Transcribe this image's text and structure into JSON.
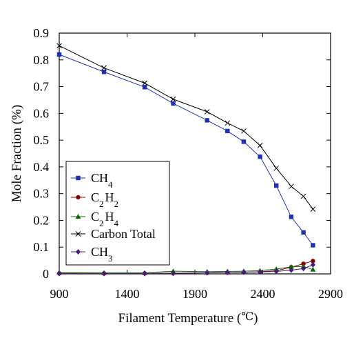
{
  "chart_data": {
    "type": "line",
    "xlabel": "Filament Temperature",
    "xunit": "℃",
    "ylabel": "Mole Fraction (%)",
    "xlim": [
      900,
      2900
    ],
    "ylim": [
      0,
      0.9
    ],
    "x_ticks": [
      900,
      1400,
      1900,
      2400,
      2900
    ],
    "x_tick_labels": [
      "900",
      "1400",
      "1900",
      "2400",
      "2900"
    ],
    "y_ticks": [
      0,
      0.1,
      0.2,
      0.3,
      0.4,
      0.5,
      0.6,
      0.7,
      0.8,
      0.9
    ],
    "y_tick_labels": [
      "0",
      "0.1",
      "0.2",
      "0.3",
      "0.4",
      "0.5",
      "0.6",
      "0.7",
      "0.8",
      "0.9"
    ],
    "grid": false,
    "legend_position": "bottom-left",
    "series": [
      {
        "name": "CH4",
        "name_base": "CH",
        "name_sub": "4",
        "color": "#1f2fb8",
        "marker": "square",
        "x": [
          900,
          1230,
          1530,
          1740,
          1990,
          2140,
          2260,
          2380,
          2500,
          2610,
          2700,
          2770
        ],
        "y": [
          0.82,
          0.755,
          0.698,
          0.637,
          0.574,
          0.534,
          0.494,
          0.438,
          0.33,
          0.213,
          0.155,
          0.107
        ]
      },
      {
        "name": "C2H2",
        "name_base": "C",
        "name_sub": "2",
        "name_rest": "H",
        "name_sub2": "2",
        "color": "#8b0000",
        "marker": "circle",
        "x": [
          900,
          1230,
          1530,
          1740,
          1990,
          2140,
          2260,
          2380,
          2500,
          2610,
          2700,
          2770
        ],
        "y": [
          0.002,
          0.002,
          0.002,
          0.003,
          0.004,
          0.005,
          0.006,
          0.008,
          0.012,
          0.025,
          0.038,
          0.048
        ]
      },
      {
        "name": "C2H4",
        "name_base": "C",
        "name_sub": "2",
        "name_rest": "H",
        "name_sub2": "4",
        "color": "#0a6b0a",
        "marker": "triangle",
        "x": [
          900,
          1230,
          1530,
          1740,
          1990,
          2140,
          2260,
          2380,
          2500,
          2610,
          2700,
          2770
        ],
        "y": [
          0.005,
          0.004,
          0.004,
          0.01,
          0.008,
          0.009,
          0.01,
          0.012,
          0.018,
          0.026,
          0.028,
          0.016
        ]
      },
      {
        "name": "Carbon Total",
        "color": "#000000",
        "marker": "x",
        "x": [
          900,
          1230,
          1530,
          1740,
          1990,
          2140,
          2260,
          2380,
          2500,
          2610,
          2700,
          2770
        ],
        "y": [
          0.853,
          0.77,
          0.713,
          0.653,
          0.606,
          0.564,
          0.534,
          0.48,
          0.395,
          0.327,
          0.29,
          0.242
        ]
      },
      {
        "name": "CH3",
        "name_base": "CH",
        "name_sub": "3",
        "color": "#4b1a7a",
        "marker": "diamond",
        "x": [
          900,
          1230,
          1530,
          1740,
          1990,
          2140,
          2260,
          2380,
          2500,
          2610,
          2700,
          2770
        ],
        "y": [
          0.001,
          0.001,
          0.001,
          0.002,
          0.004,
          0.005,
          0.006,
          0.007,
          0.009,
          0.014,
          0.02,
          0.034
        ]
      }
    ]
  }
}
